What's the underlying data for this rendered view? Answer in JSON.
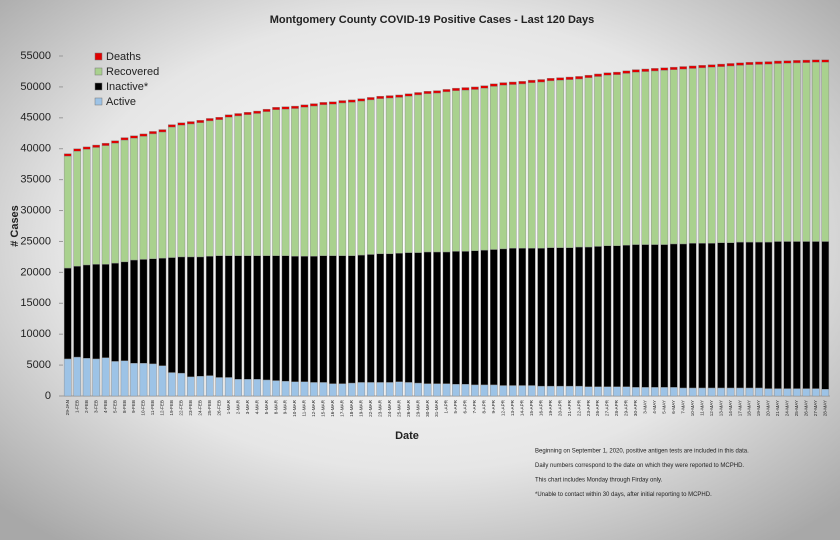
{
  "chart_data": {
    "type": "stacked_bar",
    "title": "Montgomery County COVID-19 Positive Cases - Last  120 Days",
    "x_label": "Date",
    "y_label": "# Cases",
    "categories": [
      "29-JAN",
      "1-FEB",
      "2-FEB",
      "3-FEB",
      "4-FEB",
      "5-FEB",
      "8-FEB",
      "9-FEB",
      "10-FEB",
      "11-FEB",
      "12-FEB",
      "19-FEB",
      "22-FEB",
      "23-FEB",
      "24-FEB",
      "25-FEB",
      "26-FEB",
      "1-MAR",
      "2-MAR",
      "3-MAR",
      "4-MAR",
      "5-MAR",
      "8-MAR",
      "9-MAR",
      "10-MAR",
      "11-MAR",
      "12-MAR",
      "15-MAR",
      "16-MAR",
      "17-MAR",
      "18-MAR",
      "19-MAR",
      "22-MAR",
      "23-MAR",
      "24-MAR",
      "25-MAR",
      "26-MAR",
      "29-MAR",
      "30-MAR",
      "31-MAR",
      "1-APR",
      "5-APR",
      "6-APR",
      "7-APR",
      "8-APR",
      "9-APR",
      "12-APR",
      "13-APR",
      "14-APR",
      "15-APR",
      "16-APR",
      "19-APR",
      "20-APR",
      "21-APR",
      "22-APR",
      "23-APR",
      "26-APR",
      "27-APR",
      "28-APR",
      "29-APR",
      "30-APR",
      "3-MAY",
      "4-MAY",
      "5-MAY",
      "6-MAY",
      "7-MAY",
      "10-MAY",
      "11-MAY",
      "12-MAY",
      "13-MAY",
      "14-MAY",
      "17-MAY",
      "18-MAY",
      "19-MAY",
      "20-MAY",
      "21-MAY",
      "24-MAY",
      "25-MAY",
      "26-MAY",
      "27-MAY",
      "28-MAY"
    ],
    "series": [
      {
        "name": "Active",
        "color": "#9dc3e6",
        "values": [
          6000,
          6300,
          6100,
          6000,
          6200,
          5600,
          5700,
          5300,
          5300,
          5200,
          4900,
          3800,
          3700,
          3100,
          3200,
          3300,
          3000,
          3000,
          2700,
          2700,
          2700,
          2600,
          2500,
          2400,
          2300,
          2300,
          2200,
          2200,
          2000,
          2000,
          2100,
          2200,
          2200,
          2200,
          2200,
          2300,
          2200,
          2100,
          2000,
          2000,
          2000,
          1900,
          1900,
          1800,
          1800,
          1800,
          1700,
          1700,
          1700,
          1700,
          1600,
          1600,
          1600,
          1600,
          1600,
          1500,
          1500,
          1500,
          1500,
          1500,
          1400,
          1400,
          1400,
          1400,
          1400,
          1300,
          1300,
          1300,
          1300,
          1300,
          1300,
          1300,
          1300,
          1300,
          1200,
          1200,
          1200,
          1200,
          1200,
          1200,
          1100
        ]
      },
      {
        "name": "Inactive*",
        "color": "#000000",
        "values": [
          14700,
          14700,
          15100,
          15300,
          15100,
          15900,
          16000,
          16700,
          16800,
          17000,
          17400,
          18600,
          18800,
          19400,
          19300,
          19300,
          19700,
          19700,
          20000,
          20000,
          20000,
          20100,
          20200,
          20300,
          20300,
          20300,
          20400,
          20500,
          20700,
          20700,
          20600,
          20600,
          20700,
          20800,
          20800,
          20800,
          21000,
          21100,
          21300,
          21300,
          21300,
          21500,
          21500,
          21700,
          21800,
          21900,
          22100,
          22200,
          22200,
          22200,
          22300,
          22400,
          22400,
          22400,
          22500,
          22600,
          22700,
          22800,
          22800,
          22900,
          23100,
          23100,
          23100,
          23100,
          23200,
          23300,
          23400,
          23400,
          23400,
          23500,
          23500,
          23600,
          23600,
          23600,
          23700,
          23800,
          23800,
          23800,
          23800,
          23800,
          23900
        ]
      },
      {
        "name": "Recovered",
        "color": "#a9d18e",
        "values": [
          18100,
          18600,
          18700,
          18900,
          19200,
          19400,
          19700,
          19700,
          19900,
          20200,
          20400,
          21100,
          21300,
          21500,
          21700,
          21900,
          22000,
          22400,
          22600,
          22800,
          23000,
          23300,
          23600,
          23700,
          23900,
          24100,
          24300,
          24400,
          24500,
          24700,
          24800,
          24900,
          25000,
          25100,
          25200,
          25200,
          25300,
          25500,
          25600,
          25700,
          25900,
          25980,
          26080,
          26080,
          26180,
          26380,
          26480,
          26480,
          26580,
          26780,
          26880,
          26980,
          27080,
          27180,
          27180,
          27380,
          27480,
          27580,
          27680,
          27780,
          27880,
          27980,
          28080,
          28180,
          28180,
          28280,
          28280,
          28380,
          28480,
          28480,
          28580,
          28580,
          28680,
          28730,
          28780,
          28780,
          28830,
          28880,
          28930,
          28980,
          28980
        ]
      },
      {
        "name": "Deaths",
        "color": "#e00000",
        "values": [
          400,
          400,
          400,
          400,
          400,
          400,
          400,
          400,
          400,
          400,
          400,
          400,
          400,
          400,
          400,
          400,
          400,
          400,
          400,
          400,
          400,
          400,
          400,
          400,
          400,
          400,
          400,
          400,
          400,
          400,
          400,
          400,
          400,
          400,
          400,
          400,
          400,
          400,
          400,
          400,
          400,
          420,
          420,
          420,
          420,
          420,
          420,
          420,
          420,
          420,
          420,
          420,
          420,
          420,
          420,
          420,
          420,
          420,
          420,
          420,
          420,
          420,
          420,
          420,
          420,
          420,
          420,
          420,
          420,
          420,
          420,
          420,
          420,
          420,
          420,
          420,
          420,
          420,
          420,
          420,
          420
        ]
      }
    ],
    "ylim": [
      0,
      55000
    ],
    "yticks": [
      0,
      5000,
      10000,
      15000,
      20000,
      25000,
      30000,
      35000,
      40000,
      45000,
      50000,
      55000
    ],
    "grid": false,
    "legend": "top-left",
    "notes": [
      "Beginning on September 1, 2020, positive antigen tests are included in this data.",
      "Daily numbers correspond to the date on which they were reported to MCPHD.",
      "This chart includes Monday through Firday only.",
      "*Unable to contact within 30 days, after initial reporting to MCPHD."
    ]
  }
}
